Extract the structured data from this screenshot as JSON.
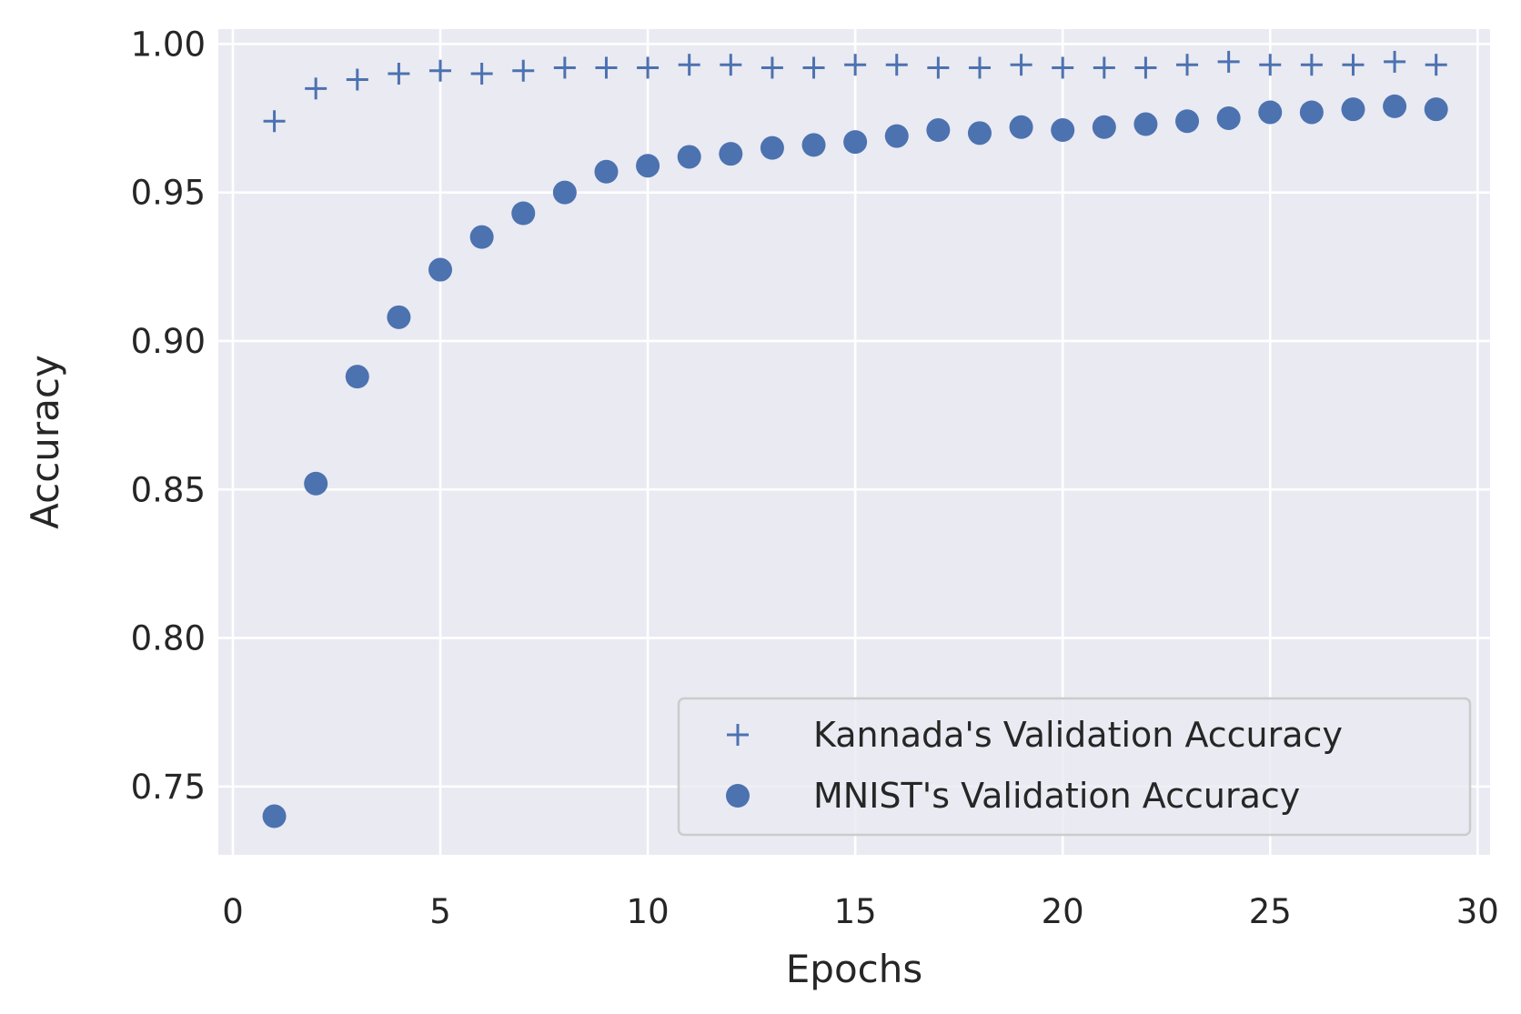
{
  "chart_data": {
    "type": "scatter",
    "title": "",
    "xlabel": "Epochs",
    "ylabel": "Accuracy",
    "xlim": [
      -0.35,
      30.3
    ],
    "ylim": [
      0.727,
      1.005
    ],
    "xticks": [
      0,
      5,
      10,
      15,
      20,
      25,
      30
    ],
    "yticks": [
      0.75,
      0.8,
      0.85,
      0.9,
      0.95,
      1.0
    ],
    "ytick_labels": [
      "0.75",
      "0.80",
      "0.85",
      "0.90",
      "0.95",
      "1.00"
    ],
    "grid": true,
    "legend_position": "lower-right",
    "colors": {
      "background": "#EAEAF2",
      "grid": "#FFFFFF",
      "marker": "#4C72B0",
      "legend_border": "#CCCCCC"
    },
    "x": [
      1,
      2,
      3,
      4,
      5,
      6,
      7,
      8,
      9,
      10,
      11,
      12,
      13,
      14,
      15,
      16,
      17,
      18,
      19,
      20,
      21,
      22,
      23,
      24,
      25,
      26,
      27,
      28,
      29
    ],
    "series": [
      {
        "name": "Kannada's Validation Accuracy",
        "marker": "plus",
        "values": [
          0.974,
          0.985,
          0.988,
          0.99,
          0.991,
          0.99,
          0.991,
          0.992,
          0.992,
          0.992,
          0.993,
          0.993,
          0.992,
          0.992,
          0.993,
          0.993,
          0.992,
          0.992,
          0.993,
          0.992,
          0.992,
          0.992,
          0.993,
          0.994,
          0.993,
          0.993,
          0.993,
          0.994,
          0.993
        ]
      },
      {
        "name": "MNIST's Validation Accuracy",
        "marker": "circle",
        "values": [
          0.74,
          0.852,
          0.888,
          0.908,
          0.924,
          0.935,
          0.943,
          0.95,
          0.957,
          0.959,
          0.962,
          0.963,
          0.965,
          0.966,
          0.967,
          0.969,
          0.971,
          0.97,
          0.972,
          0.971,
          0.972,
          0.973,
          0.974,
          0.975,
          0.977,
          0.977,
          0.978,
          0.979,
          0.978
        ]
      }
    ]
  }
}
